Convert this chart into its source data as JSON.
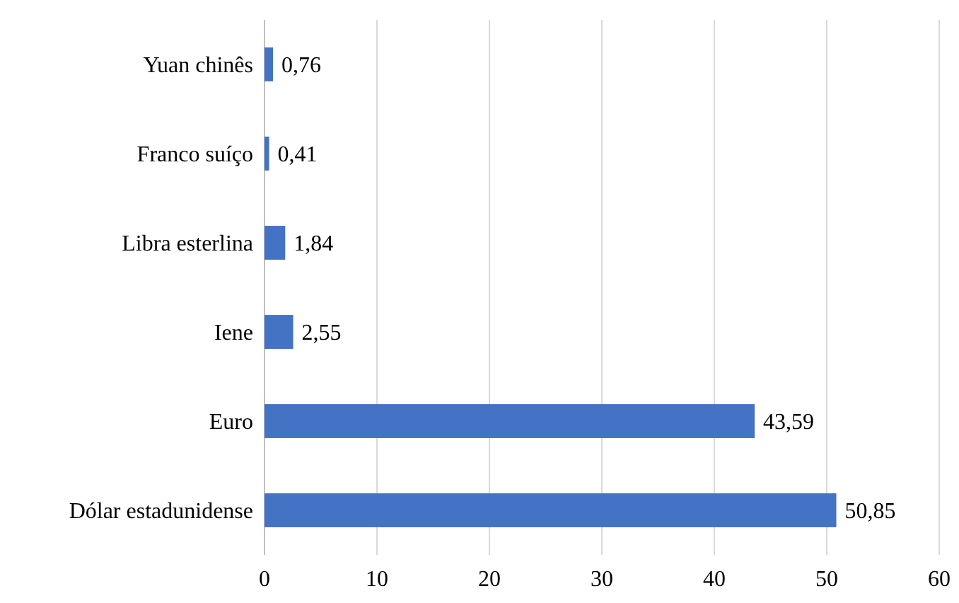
{
  "chart_data": {
    "type": "bar",
    "orientation": "horizontal",
    "categories": [
      "Yuan chinês",
      "Franco suíço",
      "Libra esterlina",
      "Iene",
      "Euro",
      "Dólar estadunidense"
    ],
    "values": [
      0.76,
      0.41,
      1.84,
      2.55,
      43.59,
      50.85
    ],
    "value_labels": [
      "0,76",
      "0,41",
      "1,84",
      "2,55",
      "43,59",
      "50,85"
    ],
    "color": "#4472c4",
    "xlim": [
      0,
      60
    ],
    "xticks": [
      0,
      10,
      20,
      30,
      40,
      50,
      60
    ],
    "grid": "x"
  }
}
